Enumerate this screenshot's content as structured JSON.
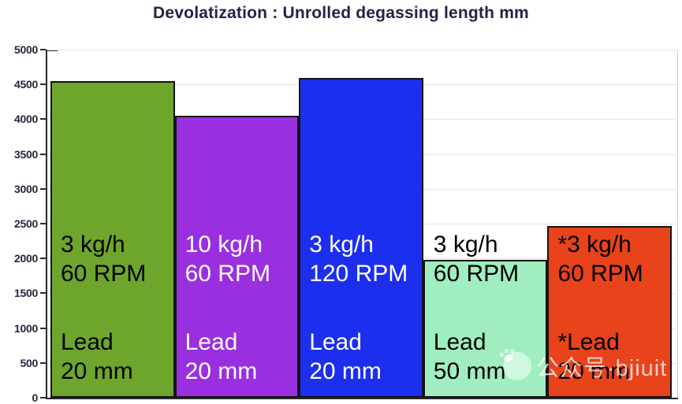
{
  "title": "Devolatization : Unrolled degassing length mm",
  "watermark": {
    "icon": "paw-icon",
    "text": "公众号·bjiuit"
  },
  "chart_data": {
    "type": "bar",
    "title": "Devolatization : Unrolled degassing length mm",
    "xlabel": "",
    "ylabel": "",
    "ylim": [
      0,
      5000
    ],
    "yticks": [
      0,
      500,
      1000,
      1500,
      2000,
      2500,
      3000,
      3500,
      4000,
      4500,
      5000
    ],
    "grid": true,
    "legend": "none",
    "categories": [
      "3 kg/h 60 RPM, Lead 20 mm",
      "10 kg/h 60 RPM, Lead 20 mm",
      "3 kg/h 120 RPM, Lead 20 mm",
      "3 kg/h 60 RPM, Lead 50 mm",
      "*3 kg/h 60 RPM, *Lead 20 mm"
    ],
    "values": [
      4550,
      4050,
      4590,
      1980,
      2470
    ],
    "bars": [
      {
        "line1": "3 kg/h",
        "line2": "60 RPM",
        "line3": "Lead",
        "line4": "20 mm",
        "value": 4550,
        "color": "#6ea52c",
        "text_color": "#000000"
      },
      {
        "line1": "10 kg/h",
        "line2": "60 RPM",
        "line3": "Lead",
        "line4": "20 mm",
        "value": 4050,
        "color": "#9a2fe0",
        "text_color": "#ffffff"
      },
      {
        "line1": "3 kg/h",
        "line2": "120 RPM",
        "line3": "Lead",
        "line4": "20 mm",
        "value": 4590,
        "color": "#1c2fee",
        "text_color": "#ffffff"
      },
      {
        "line1": "3 kg/h",
        "line2": "60 RPM",
        "line3": "Lead",
        "line4": "50 mm",
        "value": 1980,
        "color": "#a0eec0",
        "text_color": "#000000"
      },
      {
        "line1": "*3 kg/h",
        "line2": "60 RPM",
        "line3": "*Lead",
        "line4": "20 mm",
        "value": 2470,
        "color": "#e8431a",
        "text_color": "#000000"
      }
    ],
    "colors": [
      "#6ea52c",
      "#9a2fe0",
      "#1c2fee",
      "#a0eec0",
      "#e8431a"
    ]
  }
}
